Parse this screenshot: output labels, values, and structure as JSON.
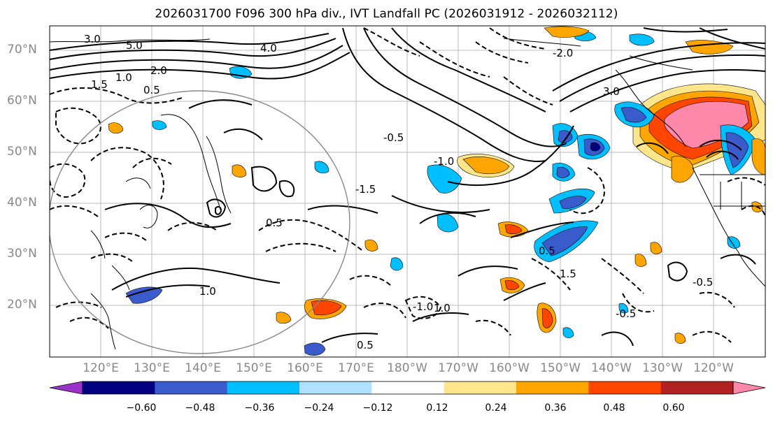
{
  "title": "2026031700 F096 300 hPa div., IVT Landfall PC (2026031912 - 2026032112)",
  "lat_labels": [
    "70°N",
    "60°N",
    "50°N",
    "40°N",
    "30°N",
    "20°N"
  ],
  "lon_labels": [
    "120°E",
    "130°E",
    "140°E",
    "150°E",
    "160°E",
    "170°E",
    "180°W",
    "170°W",
    "160°W",
    "150°W",
    "140°W",
    "130°W",
    "120°W"
  ],
  "colorbar": {
    "tick_labels": [
      "−0.60",
      "−0.48",
      "−0.36",
      "−0.24",
      "−0.12",
      "0.12",
      "0.24",
      "0.36",
      "0.48",
      "0.60"
    ],
    "colors": [
      "#9933cc",
      "#000080",
      "#3a5bcc",
      "#00bfff",
      "#b0e0ff",
      "#ffffff",
      "#ffe68a",
      "#ffa500",
      "#ff4500",
      "#b22222",
      "#ff88aa"
    ]
  },
  "contour_labels": [
    "3.0",
    "5.0",
    "4.0",
    "2.0",
    "1.5",
    "1.0",
    "0.5",
    "-0.5",
    "-1.0",
    "-1.5",
    "-2.0",
    "3.0",
    "0.5",
    "1.0",
    "-0.5",
    "0.5",
    "-1.0",
    "1.5",
    "-0.5",
    "0.5",
    "1.0"
  ]
}
